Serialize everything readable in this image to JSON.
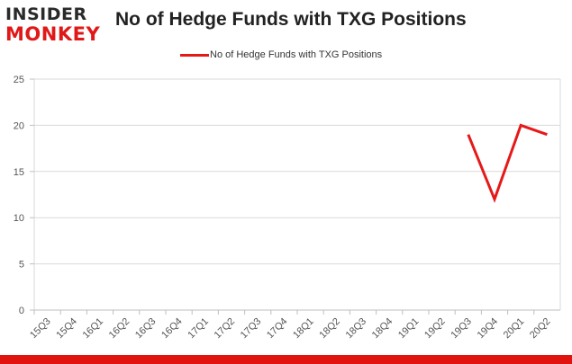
{
  "header": {
    "logo_top": "INSIDER",
    "logo_bottom": "MONKEY",
    "title": "No of Hedge Funds with TXG Positions"
  },
  "colors": {
    "series": "#e61919",
    "brand_red": "#e0130f",
    "grid": "#d9d9d9"
  },
  "chart_data": {
    "type": "line",
    "title": "No of Hedge Funds with TXG Positions",
    "categories": [
      "15Q3",
      "15Q4",
      "16Q1",
      "16Q2",
      "16Q3",
      "16Q4",
      "17Q1",
      "17Q2",
      "17Q3",
      "17Q4",
      "18Q1",
      "18Q2",
      "18Q3",
      "18Q4",
      "19Q1",
      "19Q2",
      "19Q3",
      "19Q4",
      "20Q1",
      "20Q2"
    ],
    "series": [
      {
        "name": "No of Hedge Funds with TXG Positions",
        "values": [
          null,
          null,
          null,
          null,
          null,
          null,
          null,
          null,
          null,
          null,
          null,
          null,
          null,
          null,
          null,
          null,
          19,
          12,
          20,
          19
        ]
      }
    ],
    "yticks": [
      0,
      5,
      10,
      15,
      20,
      25
    ],
    "ylim": [
      0,
      25
    ],
    "grid": true,
    "legend": "top-center"
  }
}
